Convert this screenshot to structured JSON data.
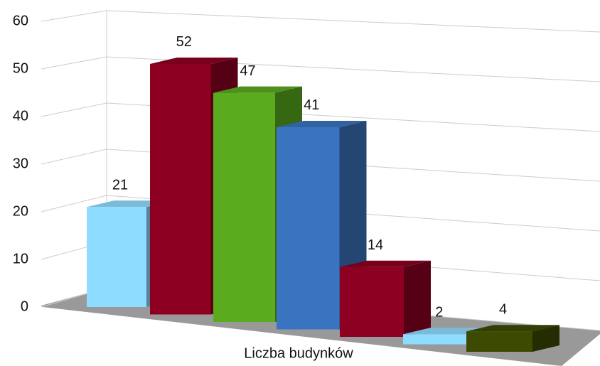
{
  "chart_data": {
    "type": "bar3d",
    "x_label": "Liczba budynków",
    "categories": [
      null,
      null,
      null,
      null,
      null,
      null,
      null
    ],
    "values": [
      21,
      52,
      47,
      41,
      14,
      2,
      4
    ],
    "colors": [
      "#8edcff",
      "#8e0022",
      "#5aab1e",
      "#3a74c0",
      "#8e0022",
      "#8edcff",
      "#3c4a02"
    ],
    "ylim": [
      0,
      60
    ],
    "yticks": [
      0,
      10,
      20,
      30,
      40,
      50,
      60
    ],
    "grid": true
  }
}
